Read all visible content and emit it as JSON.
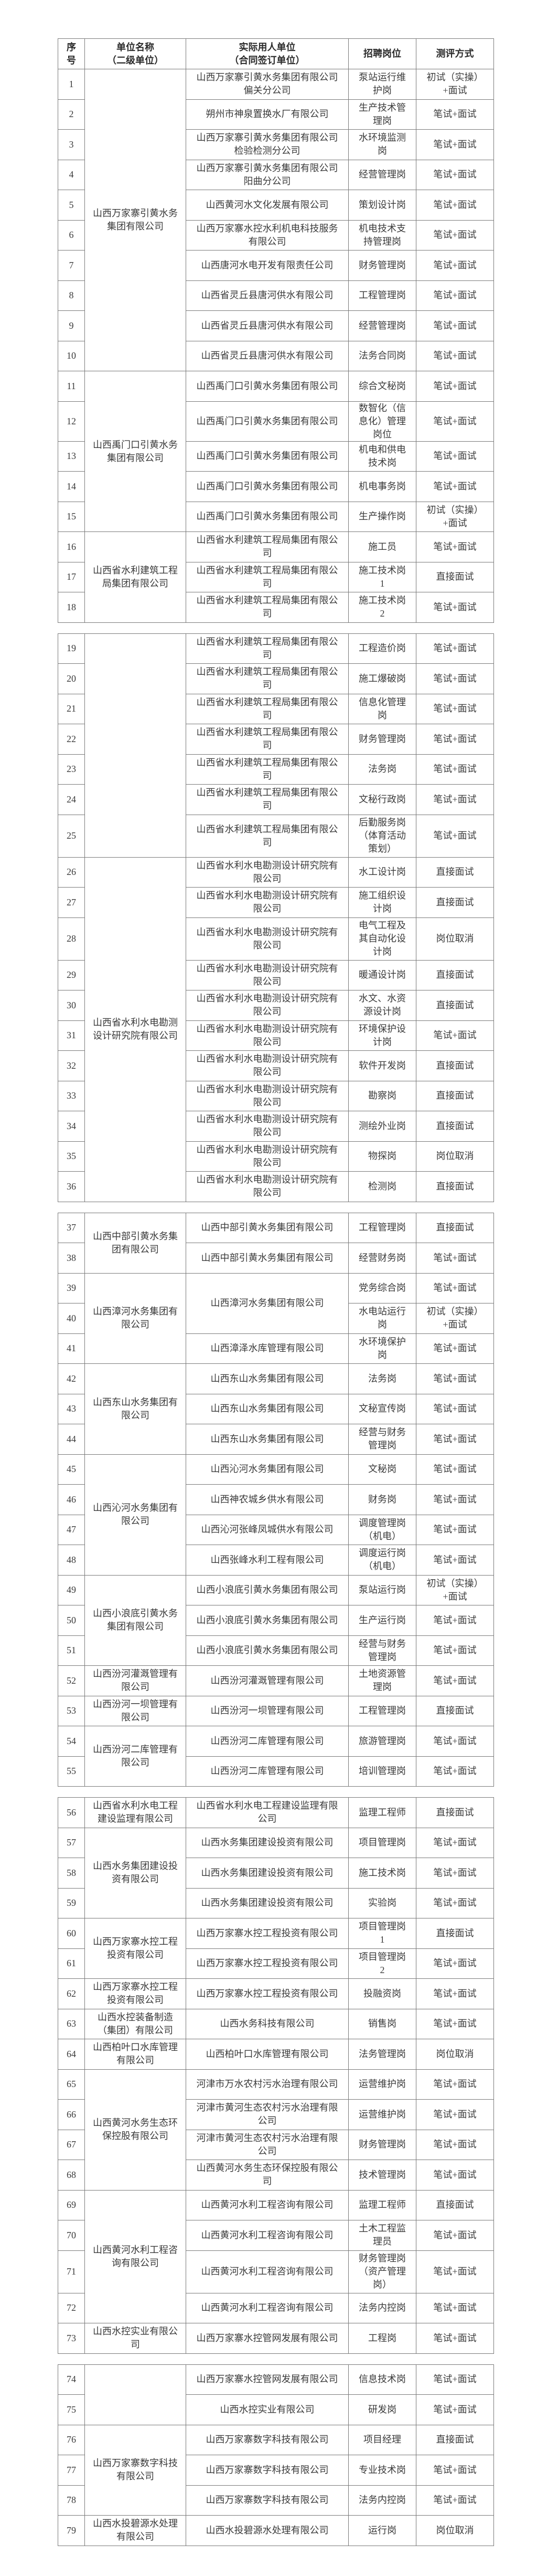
{
  "header": {
    "no": "序\n号",
    "unit": "单位名称\n（二级单位）",
    "employer": "实际用人单位\n（合同签订单位）",
    "position": "招聘岗位",
    "method": "测评方式"
  },
  "tables": [
    {
      "groups": [
        {
          "unit": "山西万家寨引黄水务集团有限公司",
          "rows": [
            {
              "no": "1",
              "employer": "山西万家寨引黄水务集团有限公司偏关分公司",
              "position": "泵站运行维护岗",
              "method": "初试（实操）+面试"
            },
            {
              "no": "2",
              "employer": "朔州市神泉置换水厂有限公司",
              "position": "生产技术管理岗",
              "method": "笔试+面试"
            },
            {
              "no": "3",
              "employer": "山西万家寨引黄水务集团有限公司检验检测分公司",
              "position": "水环境监测岗",
              "method": "笔试+面试"
            },
            {
              "no": "4",
              "employer": "山西万家寨引黄水务集团有限公司阳曲分公司",
              "position": "经营管理岗",
              "method": "笔试+面试"
            },
            {
              "no": "5",
              "employer": "山西黄河水文化发展有限公司",
              "position": "策划设计岗",
              "method": "笔试+面试"
            },
            {
              "no": "6",
              "employer": "山西万家寨水控水利机电科技服务有限公司",
              "position": "机电技术支持管理岗",
              "method": "笔试+面试"
            },
            {
              "no": "7",
              "employer": "山西唐河水电开发有限责任公司",
              "position": "财务管理岗",
              "method": "笔试+面试"
            },
            {
              "no": "8",
              "employer": "山西省灵丘县唐河供水有限公司",
              "position": "工程管理岗",
              "method": "笔试+面试"
            },
            {
              "no": "9",
              "employer": "山西省灵丘县唐河供水有限公司",
              "position": "经营管理岗",
              "method": "笔试+面试"
            },
            {
              "no": "10",
              "employer": "山西省灵丘县唐河供水有限公司",
              "position": "法务合同岗",
              "method": "笔试+面试"
            }
          ]
        },
        {
          "unit": "山西禹门口引黄水务集团有限公司",
          "rows": [
            {
              "no": "11",
              "employer": "山西禹门口引黄水务集团有限公司",
              "position": "综合文秘岗",
              "method": "笔试+面试"
            },
            {
              "no": "12",
              "employer": "山西禹门口引黄水务集团有限公司",
              "position": "数智化（信息化）管理岗位",
              "method": "笔试+面试"
            },
            {
              "no": "13",
              "employer": "山西禹门口引黄水务集团有限公司",
              "position": "机电和供电技术岗",
              "method": "笔试+面试"
            },
            {
              "no": "14",
              "employer": "山西禹门口引黄水务集团有限公司",
              "position": "机电事务岗",
              "method": "笔试+面试"
            },
            {
              "no": "15",
              "employer": "山西禹门口引黄水务集团有限公司",
              "position": "生产操作岗",
              "method": "初试（实操）+面试"
            }
          ]
        },
        {
          "unit": "山西省水利建筑工程局集团有限公司",
          "rows": [
            {
              "no": "16",
              "employer": "山西省水利建筑工程局集团有限公司",
              "position": "施工员",
              "method": "笔试+面试"
            },
            {
              "no": "17",
              "employer": "山西省水利建筑工程局集团有限公司",
              "position": "施工技术岗 1",
              "method": "直接面试"
            },
            {
              "no": "18",
              "employer": "山西省水利建筑工程局集团有限公司",
              "position": "施工技术岗 2",
              "method": "笔试+面试"
            }
          ]
        }
      ]
    },
    {
      "groups": [
        {
          "unit": "",
          "rows": [
            {
              "no": "19",
              "employer": "山西省水利建筑工程局集团有限公司",
              "position": "工程造价岗",
              "method": "笔试+面试"
            },
            {
              "no": "20",
              "employer": "山西省水利建筑工程局集团有限公司",
              "position": "施工爆破岗",
              "method": "笔试+面试"
            },
            {
              "no": "21",
              "employer": "山西省水利建筑工程局集团有限公司",
              "position": "信息化管理岗",
              "method": "笔试+面试"
            },
            {
              "no": "22",
              "employer": "山西省水利建筑工程局集团有限公司",
              "position": "财务管理岗",
              "method": "笔试+面试"
            },
            {
              "no": "23",
              "employer": "山西省水利建筑工程局集团有限公司",
              "position": "法务岗",
              "method": "笔试+面试"
            },
            {
              "no": "24",
              "employer": "山西省水利建筑工程局集团有限公司",
              "position": "文秘行政岗",
              "method": "笔试+面试"
            },
            {
              "no": "25",
              "employer": "山西省水利建筑工程局集团有限公司",
              "position": "后勤服务岗（体育活动策划）",
              "method": "笔试+面试"
            }
          ]
        },
        {
          "unit": "山西省水利水电勘测设计研究院有限公司",
          "rows": [
            {
              "no": "26",
              "employer": "山西省水利水电勘测设计研究院有限公司",
              "position": "水工设计岗",
              "method": "直接面试"
            },
            {
              "no": "27",
              "employer": "山西省水利水电勘测设计研究院有限公司",
              "position": "施工组织设计岗",
              "method": "直接面试"
            },
            {
              "no": "28",
              "employer": "山西省水利水电勘测设计研究院有限公司",
              "position": "电气工程及其自动化设计岗",
              "method": "岗位取消"
            },
            {
              "no": "29",
              "employer": "山西省水利水电勘测设计研究院有限公司",
              "position": "暖通设计岗",
              "method": "直接面试"
            },
            {
              "no": "30",
              "employer": "山西省水利水电勘测设计研究院有限公司",
              "position": "水文、水资源设计岗",
              "method": "直接面试"
            },
            {
              "no": "31",
              "employer": "山西省水利水电勘测设计研究院有限公司",
              "position": "环境保护设计岗",
              "method": "笔试+面试"
            },
            {
              "no": "32",
              "employer": "山西省水利水电勘测设计研究院有限公司",
              "position": "软件开发岗",
              "method": "直接面试"
            },
            {
              "no": "33",
              "employer": "山西省水利水电勘测设计研究院有限公司",
              "position": "勘察岗",
              "method": "直接面试"
            },
            {
              "no": "34",
              "employer": "山西省水利水电勘测设计研究院有限公司",
              "position": "测绘外业岗",
              "method": "直接面试"
            },
            {
              "no": "35",
              "employer": "山西省水利水电勘测设计研究院有限公司",
              "position": "物探岗",
              "method": "岗位取消"
            },
            {
              "no": "36",
              "employer": "山西省水利水电勘测设计研究院有限公司",
              "position": "检测岗",
              "method": "直接面试"
            }
          ]
        }
      ]
    },
    {
      "groups": [
        {
          "unit": "山西中部引黄水务集团有限公司",
          "rows": [
            {
              "no": "37",
              "employer": "山西中部引黄水务集团有限公司",
              "position": "工程管理岗",
              "method": "直接面试"
            },
            {
              "no": "38",
              "employer": "山西中部引黄水务集团有限公司",
              "position": "经营财务岗",
              "method": "笔试+面试"
            }
          ]
        },
        {
          "unit": "山西漳河水务集团有限公司",
          "rows": [
            {
              "no": "39",
              "employer": "山西漳河水务集团有限公司",
              "employer_span": 2,
              "position": "党务综合岗",
              "method": "笔试+面试"
            },
            {
              "no": "40",
              "position": "水电站运行岗",
              "method": "初试（实操）+面试"
            },
            {
              "no": "41",
              "employer": "山西漳泽水库管理有限公司",
              "position": "水环境保护岗",
              "method": "笔试+面试"
            }
          ]
        },
        {
          "unit": "山西东山水务集团有限公司",
          "rows": [
            {
              "no": "42",
              "employer": "山西东山水务集团有限公司",
              "position": "法务岗",
              "method": "笔试+面试"
            },
            {
              "no": "43",
              "employer": "山西东山水务集团有限公司",
              "position": "文秘宣传岗",
              "method": "笔试+面试"
            },
            {
              "no": "44",
              "employer": "山西东山水务集团有限公司",
              "position": "经营与财务管理岗",
              "method": "笔试+面试"
            }
          ]
        },
        {
          "unit": "山西沁河水务集团有限公司",
          "rows": [
            {
              "no": "45",
              "employer": "山西沁河水务集团有限公司",
              "position": "文秘岗",
              "method": "笔试+面试"
            },
            {
              "no": "46",
              "employer": "山西神农城乡供水有限公司",
              "position": "财务岗",
              "method": "笔试+面试"
            },
            {
              "no": "47",
              "employer": "山西沁河张峰凤城供水有限公司",
              "position": "调度管理岗（机电）",
              "method": "笔试+面试"
            },
            {
              "no": "48",
              "employer": "山西张峰水利工程有限公司",
              "position": "调度运行岗（机电）",
              "method": "笔试+面试"
            }
          ]
        },
        {
          "unit": "山西小浪底引黄水务集团有限公司",
          "rows": [
            {
              "no": "49",
              "employer": "山西小浪底引黄水务集团有限公司",
              "position": "泵站运行岗",
              "method": "初试（实操）+面试"
            },
            {
              "no": "50",
              "employer": "山西小浪底引黄水务集团有限公司",
              "position": "生产运行岗",
              "method": "笔试+面试"
            },
            {
              "no": "51",
              "employer": "山西小浪底引黄水务集团有限公司",
              "position": "经营与财务管理岗",
              "method": "笔试+面试"
            }
          ]
        },
        {
          "unit": "山西汾河灌溉管理有限公司",
          "rows": [
            {
              "no": "52",
              "employer": "山西汾河灌溉管理有限公司",
              "position": "土地资源管理岗",
              "method": "笔试+面试"
            }
          ]
        },
        {
          "unit": "山西汾河一坝管理有限公司",
          "rows": [
            {
              "no": "53",
              "employer": "山西汾河一坝管理有限公司",
              "position": "工程管理岗",
              "method": "直接面试"
            }
          ]
        },
        {
          "unit": "山西汾河二库管理有限公司",
          "rows": [
            {
              "no": "54",
              "employer": "山西汾河二库管理有限公司",
              "position": "旅游管理岗",
              "method": "笔试+面试"
            },
            {
              "no": "55",
              "employer": "山西汾河二库管理有限公司",
              "position": "培训管理岗",
              "method": "笔试+面试"
            }
          ]
        }
      ]
    },
    {
      "groups": [
        {
          "unit": "山西省水利水电工程建设监理有限公司",
          "rows": [
            {
              "no": "56",
              "employer": "山西省水利水电工程建设监理有限公司",
              "position": "监理工程师",
              "method": "直接面试"
            }
          ]
        },
        {
          "unit": "山西水务集团建设投资有限公司",
          "rows": [
            {
              "no": "57",
              "employer": "山西水务集团建设投资有限公司",
              "position": "项目管理岗",
              "method": "笔试+面试"
            },
            {
              "no": "58",
              "employer": "山西水务集团建设投资有限公司",
              "position": "施工技术岗",
              "method": "笔试+面试"
            },
            {
              "no": "59",
              "employer": "山西水务集团建设投资有限公司",
              "position": "实验岗",
              "method": "笔试+面试"
            }
          ]
        },
        {
          "unit": "山西万家寨水控工程投资有限公司",
          "rows": [
            {
              "no": "60",
              "employer": "山西万家寨水控工程投资有限公司",
              "position": "项目管理岗 1",
              "method": "直接面试"
            },
            {
              "no": "61",
              "employer": "山西万家寨水控工程投资有限公司",
              "position": "项目管理岗 2",
              "method": "笔试+面试"
            }
          ]
        },
        {
          "unit": "山西万家寨水控工程投资有限公司",
          "rows": [
            {
              "no": "62",
              "employer": "山西万家寨水控工程投资有限公司",
              "position": "投融资岗",
              "method": "笔试+面试"
            }
          ]
        },
        {
          "unit": "山西水控装备制造（集团）有限公司",
          "rows": [
            {
              "no": "63",
              "employer": "山西水务科技有限公司",
              "position": "销售岗",
              "method": "笔试+面试"
            }
          ]
        },
        {
          "unit": "山西柏叶口水库管理有限公司",
          "rows": [
            {
              "no": "64",
              "employer": "山西柏叶口水库管理有限公司",
              "position": "法务管理岗",
              "method": "岗位取消"
            }
          ]
        },
        {
          "unit": "山西黄河水务生态环保控股有限公司",
          "rows": [
            {
              "no": "65",
              "employer": "河津市万水农村污水治理有限公司",
              "position": "运营维护岗",
              "method": "笔试+面试"
            },
            {
              "no": "66",
              "employer": "河津市黄河生态农村污水治理有限公司",
              "position": "运营维护岗",
              "method": "笔试+面试"
            },
            {
              "no": "67",
              "employer": "河津市黄河生态农村污水治理有限公司",
              "position": "财务管理岗",
              "method": "笔试+面试"
            },
            {
              "no": "68",
              "employer": "山西黄河水务生态环保控股有限公司",
              "position": "技术管理岗",
              "method": "笔试+面试"
            }
          ]
        },
        {
          "unit": "山西黄河水利工程咨询有限公司",
          "rows": [
            {
              "no": "69",
              "employer": "山西黄河水利工程咨询有限公司",
              "position": "监理工程师",
              "method": "直接面试"
            },
            {
              "no": "70",
              "employer": "山西黄河水利工程咨询有限公司",
              "position": "土木工程监理员",
              "method": "笔试+面试"
            },
            {
              "no": "71",
              "employer": "山西黄河水利工程咨询有限公司",
              "position": "财务管理岗（资产管理岗）",
              "method": "笔试+面试"
            },
            {
              "no": "72",
              "employer": "山西黄河水利工程咨询有限公司",
              "position": "法务内控岗",
              "method": "笔试+面试"
            }
          ]
        },
        {
          "unit": "山西水控实业有限公司",
          "rows": [
            {
              "no": "73",
              "employer": "山西万家寨水控管网发展有限公司",
              "position": "工程岗",
              "method": "笔试+面试"
            }
          ]
        }
      ]
    },
    {
      "groups": [
        {
          "unit": "",
          "rows": [
            {
              "no": "74",
              "employer": "山西万家寨水控管网发展有限公司",
              "position": "信息技术岗",
              "method": "笔试+面试"
            },
            {
              "no": "75",
              "employer": "山西水控实业有限公司",
              "position": "研发岗",
              "method": "笔试+面试"
            }
          ]
        },
        {
          "unit": "山西万家寨数字科技有限公司",
          "rows": [
            {
              "no": "76",
              "employer": "山西万家寨数字科技有限公司",
              "position": "项目经理",
              "method": "直接面试"
            },
            {
              "no": "77",
              "employer": "山西万家寨数字科技有限公司",
              "position": "专业技术岗",
              "method": "笔试+面试"
            },
            {
              "no": "78",
              "employer": "山西万家寨数字科技有限公司",
              "position": "法务内控岗",
              "method": "笔试+面试"
            }
          ]
        },
        {
          "unit": "山西水投碧源水处理有限公司",
          "rows": [
            {
              "no": "79",
              "employer": "山西水投碧源水处理有限公司",
              "position": "运行岗",
              "method": "岗位取消"
            }
          ]
        }
      ]
    }
  ]
}
